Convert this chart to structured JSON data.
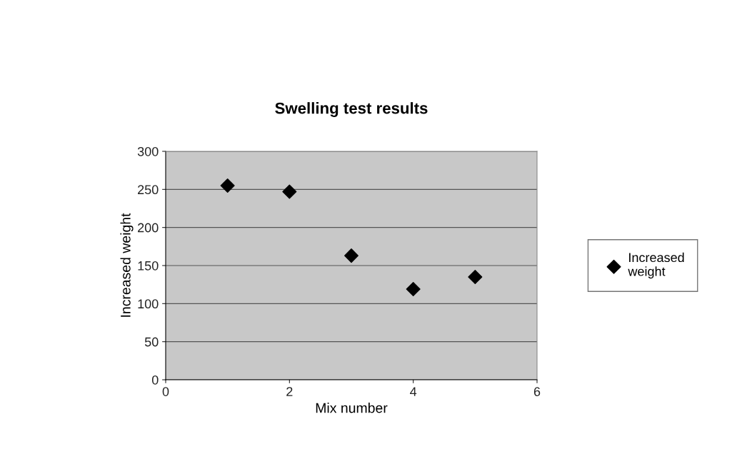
{
  "chart_data": {
    "type": "scatter",
    "title": "Swelling test results",
    "xlabel": "Mix number",
    "ylabel": "Increased weight",
    "x": [
      1,
      2,
      3,
      4,
      5
    ],
    "series": [
      {
        "name": "Increased weight",
        "color": "#000000",
        "values": [
          255,
          247,
          163,
          119,
          135
        ]
      }
    ],
    "xlim": [
      0,
      6
    ],
    "xticks": [
      0,
      2,
      4,
      6
    ],
    "ylim": [
      0,
      300
    ],
    "yticks": [
      0,
      50,
      100,
      150,
      200,
      250,
      300
    ],
    "grid": "y",
    "legend": "right",
    "marker": "diamond"
  }
}
